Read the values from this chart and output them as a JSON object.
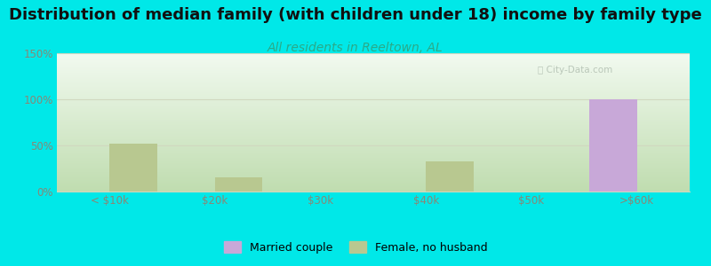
{
  "title": "Distribution of median family (with children under 18) income by family type",
  "subtitle": "All residents in Reeltown, AL",
  "categories": [
    "< $10k",
    "$20k",
    "$30k",
    "$40k",
    "$50k",
    ">$60k"
  ],
  "married_couple": [
    0,
    0,
    0,
    0,
    0,
    100
  ],
  "female_no_husband": [
    52,
    15,
    0,
    33,
    0,
    0
  ],
  "married_color": "#c8a8d8",
  "female_color": "#b8c890",
  "bg_color": "#00e8e8",
  "grad_top_color": "#c0ddb0",
  "grad_bot_color": "#f2faf0",
  "ylabel_ticks": [
    "0%",
    "50%",
    "100%",
    "150%"
  ],
  "ylabel_values": [
    0,
    50,
    100,
    150
  ],
  "ylim": [
    0,
    150
  ],
  "title_fontsize": 13,
  "subtitle_fontsize": 10,
  "subtitle_color": "#2aaa88",
  "watermark": "ⓘ City-Data.com",
  "bar_width": 0.45,
  "tick_color": "#888877",
  "grid_color": "#d0d8c0"
}
